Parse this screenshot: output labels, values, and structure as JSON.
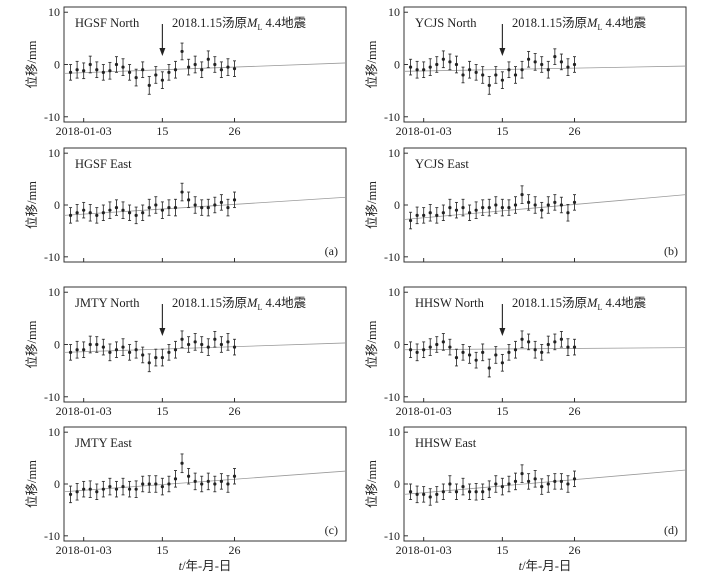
{
  "figure": {
    "y_axis_label": "位移/mm",
    "x_axis_label": "t/年-月-日",
    "event_label_prefix": "2018.1.15汤原",
    "event_label_sub": "L",
    "event_label_suffix": " 4.4地震"
  },
  "chart_data": [
    {
      "type": "scatter",
      "panel_label": "",
      "title": "HGSF North",
      "event_marker": true,
      "x": [
        1,
        2,
        3,
        4,
        5,
        6,
        7,
        8,
        9,
        10,
        11,
        12,
        13,
        14,
        15,
        16,
        17,
        18,
        19,
        20,
        21,
        22,
        23,
        24,
        25,
        26
      ],
      "y": [
        -1.5,
        -1.0,
        -1.2,
        0.0,
        -1.0,
        -1.5,
        -1.2,
        0.0,
        -0.5,
        -1.5,
        -2.5,
        -1.0,
        -4.0,
        -2.0,
        -3.0,
        -1.5,
        -1.0,
        2.5,
        -0.5,
        0.0,
        -1.0,
        1.0,
        0.0,
        -1.0,
        -0.5,
        -0.8
      ],
      "err": [
        1.5,
        1.6,
        1.5,
        1.6,
        1.5,
        1.5,
        1.6,
        1.5,
        1.6,
        1.5,
        1.6,
        1.5,
        1.7,
        1.6,
        1.6,
        1.5,
        1.6,
        1.6,
        1.5,
        1.6,
        1.5,
        1.6,
        1.5,
        1.5,
        1.6,
        1.5
      ],
      "trend": [
        -1.7,
        0.3
      ],
      "xticks": [
        {
          "x": 3,
          "label": "2018-01-03"
        },
        {
          "x": 15,
          "label": "15"
        },
        {
          "x": 26,
          "label": "26"
        }
      ],
      "yticks": [
        -10,
        0,
        10
      ],
      "xlim": [
        0,
        43
      ],
      "ylim": [
        -11,
        11
      ]
    },
    {
      "type": "scatter",
      "panel_label": "",
      "title": "YCJS North",
      "event_marker": true,
      "x": [
        1,
        2,
        3,
        4,
        5,
        6,
        7,
        8,
        9,
        10,
        11,
        12,
        13,
        14,
        15,
        16,
        17,
        18,
        19,
        20,
        21,
        22,
        23,
        24,
        25,
        26
      ],
      "y": [
        -0.5,
        -1.0,
        -1.0,
        -0.5,
        0.0,
        1.0,
        0.5,
        0.0,
        -2.0,
        -1.0,
        -1.5,
        -2.0,
        -4.0,
        -2.0,
        -3.0,
        -1.0,
        -2.0,
        -1.0,
        1.0,
        0.5,
        0.0,
        -1.0,
        1.5,
        0.5,
        -0.5,
        0.0
      ],
      "err": [
        1.5,
        1.6,
        1.5,
        1.6,
        1.5,
        1.6,
        1.5,
        1.6,
        1.5,
        1.6,
        1.5,
        1.6,
        1.7,
        1.6,
        1.6,
        1.5,
        1.6,
        1.6,
        1.5,
        1.6,
        1.5,
        1.6,
        1.5,
        1.5,
        1.6,
        1.5
      ],
      "trend": [
        -1.3,
        -0.3
      ],
      "xticks": [
        {
          "x": 3,
          "label": "2018-01-03"
        },
        {
          "x": 15,
          "label": "15"
        },
        {
          "x": 26,
          "label": "26"
        }
      ],
      "yticks": [
        -10,
        0,
        10
      ],
      "xlim": [
        0,
        43
      ],
      "ylim": [
        -11,
        11
      ]
    },
    {
      "type": "scatter",
      "panel_label": "(a)",
      "title": "HGSF East",
      "event_marker": false,
      "x": [
        1,
        2,
        3,
        4,
        5,
        6,
        7,
        8,
        9,
        10,
        11,
        12,
        13,
        14,
        15,
        16,
        17,
        18,
        19,
        20,
        21,
        22,
        23,
        24,
        25,
        26
      ],
      "y": [
        -2.0,
        -1.5,
        -1.0,
        -1.5,
        -2.0,
        -1.5,
        -1.0,
        -0.5,
        -1.0,
        -1.5,
        -2.0,
        -1.5,
        -0.5,
        0.0,
        -1.0,
        -0.5,
        -0.5,
        2.5,
        1.0,
        0.0,
        -0.5,
        -0.5,
        0.0,
        0.5,
        -0.5,
        1.0
      ],
      "err": [
        1.5,
        1.6,
        1.5,
        1.6,
        1.5,
        1.5,
        1.6,
        1.5,
        1.6,
        1.5,
        1.6,
        1.5,
        1.6,
        1.6,
        1.6,
        1.5,
        1.6,
        1.7,
        1.5,
        1.6,
        1.5,
        1.6,
        1.5,
        1.5,
        1.6,
        1.5
      ],
      "trend": [
        -2.0,
        1.5
      ],
      "xticks": [
        {
          "x": 3,
          "label": "2018-01-03"
        },
        {
          "x": 15,
          "label": "15"
        },
        {
          "x": 26,
          "label": "26"
        }
      ],
      "yticks": [
        -10,
        0,
        10
      ],
      "xlim": [
        0,
        43
      ],
      "ylim": [
        -11,
        11
      ]
    },
    {
      "type": "scatter",
      "panel_label": "(b)",
      "title": "YCJS East",
      "event_marker": false,
      "x": [
        1,
        2,
        3,
        4,
        5,
        6,
        7,
        8,
        9,
        10,
        11,
        12,
        13,
        14,
        15,
        16,
        17,
        18,
        19,
        20,
        21,
        22,
        23,
        24,
        25,
        26
      ],
      "y": [
        -3.0,
        -2.0,
        -2.0,
        -1.5,
        -2.0,
        -1.5,
        -0.5,
        -1.0,
        -0.5,
        -1.5,
        -1.0,
        -0.5,
        -0.5,
        0.0,
        -0.5,
        -0.5,
        0.0,
        2.0,
        0.5,
        0.0,
        -1.0,
        0.0,
        0.5,
        0.0,
        -1.5,
        0.5
      ],
      "err": [
        1.6,
        1.6,
        1.5,
        1.6,
        1.5,
        1.5,
        1.6,
        1.5,
        1.6,
        1.5,
        1.6,
        1.5,
        1.6,
        1.6,
        1.6,
        1.5,
        1.6,
        1.7,
        1.5,
        1.6,
        1.5,
        1.6,
        1.5,
        1.5,
        1.6,
        1.5
      ],
      "trend": [
        -2.8,
        2.0
      ],
      "xticks": [
        {
          "x": 3,
          "label": "2018-01-03"
        },
        {
          "x": 15,
          "label": "15"
        },
        {
          "x": 26,
          "label": "26"
        }
      ],
      "yticks": [
        -10,
        0,
        10
      ],
      "xlim": [
        0,
        43
      ],
      "ylim": [
        -11,
        11
      ]
    },
    {
      "type": "scatter",
      "panel_label": "",
      "title": "JMTY North",
      "event_marker": true,
      "x": [
        1,
        2,
        3,
        4,
        5,
        6,
        7,
        8,
        9,
        10,
        11,
        12,
        13,
        14,
        15,
        16,
        17,
        18,
        19,
        20,
        21,
        22,
        23,
        24,
        25,
        26
      ],
      "y": [
        -1.5,
        -1.0,
        -1.0,
        0.0,
        0.0,
        -0.5,
        -1.5,
        -1.0,
        -0.5,
        -1.5,
        -1.0,
        -2.0,
        -3.5,
        -2.5,
        -2.5,
        -1.5,
        -1.0,
        1.0,
        0.0,
        0.5,
        0.0,
        -0.5,
        1.0,
        0.0,
        0.5,
        -0.5
      ],
      "err": [
        1.5,
        1.6,
        1.5,
        1.6,
        1.5,
        1.5,
        1.6,
        1.5,
        1.6,
        1.5,
        1.6,
        1.5,
        1.7,
        1.6,
        1.6,
        1.5,
        1.6,
        1.6,
        1.5,
        1.6,
        1.5,
        1.6,
        1.5,
        1.5,
        1.6,
        1.5
      ],
      "trend": [
        -1.5,
        0.3
      ],
      "xticks": [
        {
          "x": 3,
          "label": "2018-01-03"
        },
        {
          "x": 15,
          "label": "15"
        },
        {
          "x": 26,
          "label": "26"
        }
      ],
      "yticks": [
        -10,
        0,
        10
      ],
      "xlim": [
        0,
        43
      ],
      "ylim": [
        -11,
        11
      ]
    },
    {
      "type": "scatter",
      "panel_label": "",
      "title": "HHSW North",
      "event_marker": true,
      "x": [
        1,
        2,
        3,
        4,
        5,
        6,
        7,
        8,
        9,
        10,
        11,
        12,
        13,
        14,
        15,
        16,
        17,
        18,
        19,
        20,
        21,
        22,
        23,
        24,
        25,
        26
      ],
      "y": [
        -1.0,
        -1.5,
        -1.0,
        -0.5,
        0.0,
        0.5,
        -0.5,
        -2.5,
        -1.5,
        -2.0,
        -3.0,
        -1.5,
        -4.5,
        -2.0,
        -3.5,
        -1.5,
        -1.0,
        1.0,
        0.5,
        -1.0,
        -1.5,
        0.0,
        0.5,
        1.0,
        -0.5,
        -0.5
      ],
      "err": [
        1.5,
        1.6,
        1.5,
        1.6,
        1.5,
        1.6,
        1.5,
        1.6,
        1.5,
        1.6,
        1.5,
        1.6,
        1.7,
        1.6,
        1.6,
        1.5,
        1.6,
        1.6,
        1.5,
        1.6,
        1.5,
        1.6,
        1.5,
        1.5,
        1.6,
        1.5
      ],
      "trend": [
        -1.0,
        -0.6
      ],
      "xticks": [
        {
          "x": 3,
          "label": "2018-01-03"
        },
        {
          "x": 15,
          "label": "15"
        },
        {
          "x": 26,
          "label": "26"
        }
      ],
      "yticks": [
        -10,
        0,
        10
      ],
      "xlim": [
        0,
        43
      ],
      "ylim": [
        -11,
        11
      ]
    },
    {
      "type": "scatter",
      "panel_label": "(c)",
      "title": "JMTY East",
      "event_marker": false,
      "x": [
        1,
        2,
        3,
        4,
        5,
        6,
        7,
        8,
        9,
        10,
        11,
        12,
        13,
        14,
        15,
        16,
        17,
        18,
        19,
        20,
        21,
        22,
        23,
        24,
        25,
        26
      ],
      "y": [
        -2.0,
        -1.5,
        -1.0,
        -1.0,
        -1.5,
        -1.0,
        -0.5,
        -1.0,
        -0.5,
        -1.0,
        -1.0,
        0.0,
        0.0,
        0.0,
        -0.5,
        0.0,
        1.0,
        4.0,
        1.5,
        0.5,
        0.0,
        0.5,
        0.0,
        0.5,
        0.0,
        1.5
      ],
      "err": [
        1.6,
        1.6,
        1.5,
        1.6,
        1.5,
        1.5,
        1.6,
        1.5,
        1.6,
        1.5,
        1.6,
        1.5,
        1.6,
        1.6,
        1.6,
        1.5,
        1.6,
        1.8,
        1.5,
        1.6,
        1.5,
        1.6,
        1.5,
        1.5,
        1.6,
        1.5
      ],
      "trend": [
        -1.5,
        2.5
      ],
      "xticks": [
        {
          "x": 3,
          "label": "2018-01-03"
        },
        {
          "x": 15,
          "label": "15"
        },
        {
          "x": 26,
          "label": "26"
        }
      ],
      "yticks": [
        -10,
        0,
        10
      ],
      "xlim": [
        0,
        43
      ],
      "ylim": [
        -11,
        11
      ]
    },
    {
      "type": "scatter",
      "panel_label": "(d)",
      "title": "HHSW East",
      "event_marker": false,
      "x": [
        1,
        2,
        3,
        4,
        5,
        6,
        7,
        8,
        9,
        10,
        11,
        12,
        13,
        14,
        15,
        16,
        17,
        18,
        19,
        20,
        21,
        22,
        23,
        24,
        25,
        26
      ],
      "y": [
        -1.5,
        -2.0,
        -2.0,
        -2.5,
        -2.0,
        -1.5,
        0.0,
        -1.5,
        -0.5,
        -1.5,
        -1.5,
        -1.5,
        -1.0,
        0.0,
        -0.5,
        0.0,
        0.5,
        2.0,
        0.5,
        1.0,
        -0.5,
        0.0,
        0.5,
        0.5,
        0.0,
        1.0
      ],
      "err": [
        1.5,
        1.6,
        1.5,
        1.6,
        1.5,
        1.5,
        1.6,
        1.5,
        1.6,
        1.5,
        1.6,
        1.5,
        1.6,
        1.6,
        1.6,
        1.5,
        1.6,
        1.7,
        1.5,
        1.6,
        1.5,
        1.6,
        1.5,
        1.5,
        1.6,
        1.5
      ],
      "trend": [
        -2.0,
        2.7
      ],
      "xticks": [
        {
          "x": 3,
          "label": "2018-01-03"
        },
        {
          "x": 15,
          "label": "15"
        },
        {
          "x": 26,
          "label": "26"
        }
      ],
      "yticks": [
        -10,
        0,
        10
      ],
      "xlim": [
        0,
        43
      ],
      "ylim": [
        -11,
        11
      ]
    }
  ]
}
